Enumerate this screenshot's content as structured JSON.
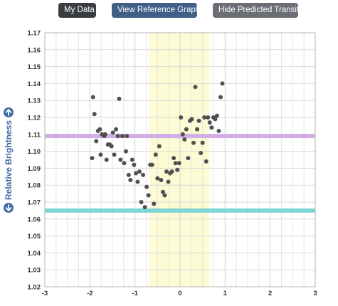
{
  "toolbar": {
    "buttons": [
      {
        "label": "My Data"
      },
      {
        "label": "View Reference Graph"
      },
      {
        "label": "Hide Predicted Transit"
      }
    ]
  },
  "chart_data": {
    "type": "scatter",
    "ylabel": "Relative Brightness",
    "xlim": [
      -3,
      3
    ],
    "ylim": [
      1.02,
      1.17
    ],
    "x_ticks": [
      "-3",
      "-2",
      "-1",
      "0",
      "1",
      "2",
      "3"
    ],
    "y_ticks": [
      "1.02",
      "1.03",
      "1.04",
      "1.05",
      "1.06",
      "1.07",
      "1.08",
      "1.09",
      "1.10",
      "1.11",
      "1.12",
      "1.13",
      "1.14",
      "1.15",
      "1.16",
      "1.17"
    ],
    "grid": true,
    "transit_region": {
      "x_start": -0.67,
      "x_end": 0.65,
      "color": "#fdfbd3"
    },
    "reference_lines": [
      {
        "y": 1.109,
        "color": "#d3aee6"
      },
      {
        "y": 1.065,
        "color": "#7fd7d5"
      }
    ],
    "point_color": "#505050",
    "points": [
      [
        -1.95,
        1.096
      ],
      [
        -1.93,
        1.132
      ],
      [
        -1.9,
        1.122
      ],
      [
        -1.86,
        1.106
      ],
      [
        -1.82,
        1.112
      ],
      [
        -1.78,
        1.113
      ],
      [
        -1.76,
        1.098
      ],
      [
        -1.73,
        1.11
      ],
      [
        -1.68,
        1.109
      ],
      [
        -1.66,
        1.11
      ],
      [
        -1.63,
        1.095
      ],
      [
        -1.6,
        1.104
      ],
      [
        -1.56,
        1.104
      ],
      [
        -1.52,
        1.103
      ],
      [
        -1.49,
        1.111
      ],
      [
        -1.46,
        1.098
      ],
      [
        -1.42,
        1.113
      ],
      [
        -1.38,
        1.109
      ],
      [
        -1.35,
        1.131
      ],
      [
        -1.32,
        1.095
      ],
      [
        -1.28,
        1.109
      ],
      [
        -1.24,
        1.093
      ],
      [
        -1.2,
        1.1
      ],
      [
        -1.18,
        1.109
      ],
      [
        -1.14,
        1.086
      ],
      [
        -1.1,
        1.083
      ],
      [
        -1.06,
        1.095
      ],
      [
        -1.02,
        1.092
      ],
      [
        -0.98,
        1.087
      ],
      [
        -0.94,
        1.082
      ],
      [
        -0.9,
        1.088
      ],
      [
        -0.86,
        1.07
      ],
      [
        -0.82,
        1.086
      ],
      [
        -0.78,
        1.067
      ],
      [
        -0.74,
        1.079
      ],
      [
        -0.7,
        1.074
      ],
      [
        -0.66,
        1.092
      ],
      [
        -0.62,
        1.092
      ],
      [
        -0.58,
        1.069
      ],
      [
        -0.54,
        1.098
      ],
      [
        -0.5,
        1.084
      ],
      [
        -0.46,
        1.103
      ],
      [
        -0.42,
        1.083
      ],
      [
        -0.38,
        1.076
      ],
      [
        -0.34,
        1.074
      ],
      [
        -0.3,
        1.088
      ],
      [
        -0.26,
        1.082
      ],
      [
        -0.22,
        1.087
      ],
      [
        -0.18,
        1.088
      ],
      [
        -0.14,
        1.096
      ],
      [
        -0.1,
        1.093
      ],
      [
        -0.06,
        1.089
      ],
      [
        -0.02,
        1.093
      ],
      [
        0.02,
        1.12
      ],
      [
        0.06,
        1.11
      ],
      [
        0.1,
        1.107
      ],
      [
        0.14,
        1.113
      ],
      [
        0.18,
        1.096
      ],
      [
        0.22,
        1.118
      ],
      [
        0.26,
        1.119
      ],
      [
        0.3,
        1.105
      ],
      [
        0.34,
        1.138
      ],
      [
        0.38,
        1.113
      ],
      [
        0.42,
        1.118
      ],
      [
        0.46,
        1.099
      ],
      [
        0.5,
        1.105
      ],
      [
        0.54,
        1.12
      ],
      [
        0.58,
        1.094
      ],
      [
        0.62,
        1.12
      ],
      [
        0.66,
        1.117
      ],
      [
        0.7,
        1.114
      ],
      [
        0.74,
        1.12
      ],
      [
        0.78,
        1.119
      ],
      [
        0.82,
        1.121
      ],
      [
        0.86,
        1.112
      ],
      [
        0.9,
        1.132
      ],
      [
        0.94,
        1.14
      ]
    ]
  }
}
